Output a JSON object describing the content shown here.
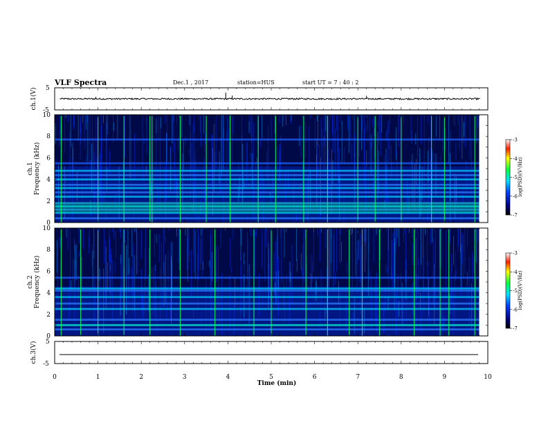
{
  "header": {
    "title": "VLF Spectra",
    "date": "Dec.1 , 2017",
    "station": "station=HUS",
    "start_ut": "start UT =  7 : 40 : 2"
  },
  "chart_data": [
    {
      "type": "line",
      "name": "ch1-waveform",
      "ylabel": "ch.1(V)",
      "ylim": [
        -5,
        5
      ],
      "yticks": [
        "5",
        "-5"
      ],
      "xlim": [
        0,
        10
      ],
      "baseline": 0,
      "spikes": [
        {
          "x": 3.95,
          "y": 2.8
        },
        {
          "x": 4.1,
          "y": 1.5
        },
        {
          "x": 7.2,
          "y": 1.4
        },
        {
          "x": 0.95,
          "y": 0.9
        }
      ]
    },
    {
      "type": "heatmap",
      "name": "ch1-spectrogram",
      "ylabel": "ch.1\nFrequency (kHz)",
      "ylabel_lines": [
        "ch.1",
        "Frequency (kHz)"
      ],
      "ylim": [
        0,
        10
      ],
      "yticks": [
        "0",
        "2",
        "4",
        "6",
        "8",
        "10"
      ],
      "xlim": [
        0,
        9.8
      ],
      "colorbar": {
        "label": "log(PSD)(V²/Hz)",
        "range": [
          -7,
          -3
        ],
        "ticks": [
          "-3",
          "-4",
          "-5",
          "-6",
          "-7"
        ]
      },
      "bands_khz": [
        0.4,
        0.9,
        1.2,
        1.5,
        1.8,
        2.4,
        2.8,
        3.2,
        3.5,
        4.0,
        4.4,
        4.8,
        5.5,
        7.7
      ],
      "strong_lines_min": [
        0.15,
        1.0,
        1.6,
        2.2,
        2.25,
        2.9,
        3.5,
        4.05,
        4.7,
        5.1,
        5.75,
        6.3,
        7.0,
        7.4,
        8.0,
        8.7,
        9.0,
        9.7
      ]
    },
    {
      "type": "heatmap",
      "name": "ch2-spectrogram",
      "ylabel": "ch.2\nFrequency (kHz)",
      "ylabel_lines": [
        "ch.2",
        "Frequency (kHz)"
      ],
      "ylim": [
        0,
        10
      ],
      "yticks": [
        "0",
        "2",
        "4",
        "6",
        "8",
        "10"
      ],
      "xlim": [
        0,
        9.8
      ],
      "colorbar": {
        "label": "log(PSD)(V²/Hz)",
        "range": [
          -7,
          -3
        ],
        "ticks": [
          "-3",
          "-4",
          "-5",
          "-6",
          "-7"
        ]
      },
      "bands_khz": [
        0.6,
        1.0,
        1.5,
        2.5,
        3.0,
        3.6,
        4.2,
        4.4,
        5.4
      ],
      "strong_lines_min": [
        0.15,
        0.6,
        1.0,
        1.6,
        2.2,
        2.9,
        3.7,
        4.6,
        5.0,
        5.8,
        6.3,
        6.8,
        7.1,
        7.5,
        8.3,
        8.9,
        9.1,
        9.7
      ]
    },
    {
      "type": "line",
      "name": "ch3-waveform",
      "ylabel": "ch.3(V)",
      "ylim": [
        -5,
        5
      ],
      "yticks": [
        "5",
        "-5"
      ],
      "xlim": [
        0,
        10
      ],
      "baseline": -2,
      "xlabel": "Time (min)",
      "xticks": [
        "0",
        "1",
        "2",
        "3",
        "4",
        "5",
        "6",
        "7",
        "8",
        "9",
        "10"
      ]
    }
  ]
}
